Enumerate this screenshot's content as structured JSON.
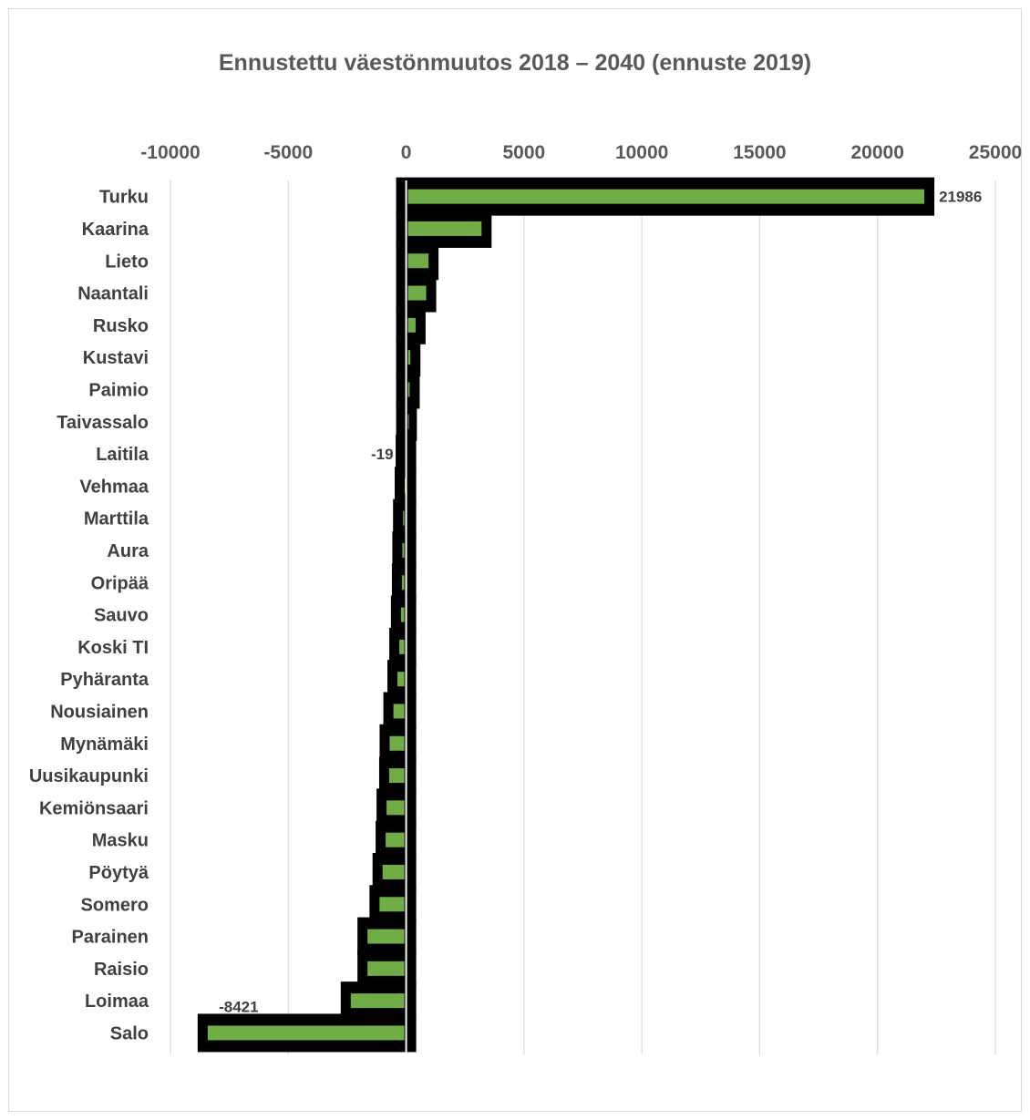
{
  "chart_data": {
    "type": "bar",
    "orientation": "horizontal",
    "title": "Ennustettu väestönmuutos 2018 –  2040 (ennuste 2019)",
    "xlim": [
      -10000,
      25000
    ],
    "xticks": [
      -10000,
      -5000,
      0,
      5000,
      10000,
      15000,
      20000,
      25000
    ],
    "grid": true,
    "bar_color": "#70ad47",
    "bar_outline_color": "#000000",
    "categories": [
      "Turku",
      "Kaarina",
      "Lieto",
      "Naantali",
      "Rusko",
      "Kustavi",
      "Paimio",
      "Taivassalo",
      "Laitila",
      "Vehmaa",
      "Marttila",
      "Aura",
      "Oripää",
      "Sauvo",
      "Koski TI",
      "Pyhäranta",
      "Nousiainen",
      "Mynämäki",
      "Uusikaupunki",
      "Kemiönsaari",
      "Masku",
      "Pöytyä",
      "Somero",
      "Parainen",
      "Raisio",
      "Loimaa",
      "Salo"
    ],
    "values": [
      21986,
      3200,
      950,
      850,
      400,
      180,
      150,
      30,
      -19,
      -60,
      -130,
      -160,
      -180,
      -220,
      -290,
      -370,
      -540,
      -700,
      -720,
      -830,
      -870,
      -1000,
      -1130,
      -1640,
      -1640,
      -2350,
      -8421
    ],
    "data_labels": [
      {
        "category": "Turku",
        "text": "21986"
      },
      {
        "category": "Laitila",
        "text": "-19"
      },
      {
        "category": "Salo",
        "text": "-8421"
      }
    ]
  }
}
